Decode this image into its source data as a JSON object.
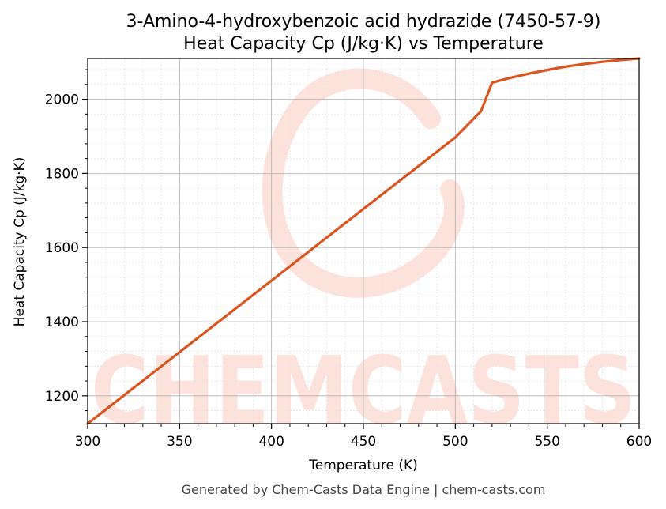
{
  "chart_data": {
    "type": "line",
    "title": "3-Amino-4-hydroxybenzoic acid hydrazide (7450-57-9)",
    "subtitle": "Heat Capacity Cp (J/kg·K) vs Temperature",
    "xlabel": "Temperature (K)",
    "ylabel": "Heat Capacity Cp (J/kg·K)",
    "xlim": [
      300,
      600
    ],
    "ylim": [
      1125,
      2110
    ],
    "xticks": [
      300,
      350,
      400,
      450,
      500,
      550,
      600
    ],
    "yticks": [
      1200,
      1400,
      1600,
      1800,
      2000
    ],
    "grid": true,
    "line_color": "#d9541e",
    "series": [
      {
        "x": [
          300,
          350,
          400,
          450,
          500,
          514,
          520,
          530,
          540,
          550,
          560,
          570,
          580,
          590,
          600
        ],
        "values": [
          1125,
          1318,
          1511,
          1704,
          1897,
          1968,
          2045,
          2058,
          2069,
          2079,
          2088,
          2095,
          2101,
          2106,
          2110
        ]
      }
    ]
  },
  "watermark": {
    "text": "CHEMCASTS",
    "color": "#fde2dc"
  },
  "footer": "Generated by Chem-Casts Data Engine | chem-casts.com"
}
